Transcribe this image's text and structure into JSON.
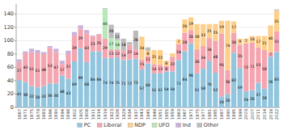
{
  "chart_data": {
    "type": "bar",
    "stacked": true,
    "grid": true,
    "legend": "bottom",
    "data_labels": true,
    "categories": [
      "1867",
      "1871",
      "1875",
      "1879",
      "1883",
      "1886",
      "1890",
      "1894",
      "1898",
      "1902",
      "1905",
      "1908",
      "1911",
      "1914",
      "1919",
      "1923",
      "1926",
      "1929",
      "1934",
      "1937",
      "1943",
      "1945",
      "1948",
      "1951",
      "1955",
      "1959",
      "1963",
      "1967",
      "1971",
      "1975",
      "1977",
      "1981",
      "1985",
      "1987",
      "1990",
      "1995",
      "1999",
      "2003",
      "2007",
      "2011",
      "2014",
      "2018",
      "2022"
    ],
    "series": [
      {
        "name": "PC",
        "color": "#92c5de",
        "values": [
          41,
          38,
          32,
          30,
          32,
          36,
          36,
          48,
          43,
          69,
          89,
          68,
          84,
          84,
          74,
          74,
          75,
          71,
          72,
          73,
          57,
          66,
          51,
          51,
          54,
          54,
          71,
          84,
          96,
          51,
          58,
          70,
          52,
          16,
          20,
          82,
          59,
          24,
          26,
          37,
          28,
          76,
          83
        ],
        "value_labels": [
          "41",
          "38",
          "32",
          "30",
          "32",
          "36",
          "36",
          "48",
          "43",
          "69",
          "89",
          "68",
          "84",
          "84",
          "74",
          "74",
          "75",
          "71",
          "72",
          "73",
          "57",
          "66",
          "51",
          "51",
          "54",
          "54",
          "71",
          "84",
          "96",
          "51",
          "58",
          "70",
          "52",
          "16",
          "20",
          "82",
          "59",
          "24",
          "26",
          "37",
          "28",
          "76",
          "83"
        ]
      },
      {
        "name": "Liberal",
        "color": "#f4a5b0",
        "values": [
          27,
          43,
          51,
          51,
          48,
          53,
          47,
          17,
          37,
          39,
          29,
          43,
          23,
          25,
          29,
          13,
          12,
          14,
          22,
          14,
          15,
          11,
          14,
          13,
          8,
          22,
          24,
          28,
          20,
          36,
          34,
          34,
          48,
          95,
          36,
          30,
          35,
          72,
          71,
          53,
          58,
          7,
          31
        ],
        "value_labels": [
          "27",
          "43",
          "51",
          "51",
          "48",
          "53",
          "47",
          "17",
          "37",
          "39",
          "29",
          "43",
          "23",
          "25",
          "29",
          "13",
          "12",
          "14",
          "22",
          "14",
          "15",
          "11",
          "14",
          "13",
          "8",
          "22",
          "24",
          "28",
          "20",
          "36",
          "34",
          "34",
          "48",
          "95",
          "36",
          "30",
          "35",
          "72",
          "71",
          "53",
          "58",
          "7",
          "31"
        ]
      },
      {
        "name": "NDP",
        "color": "#fdcf8a",
        "values": [
          0,
          0,
          0,
          0,
          0,
          0,
          0,
          0,
          0,
          0,
          0,
          0,
          0,
          0,
          0,
          0,
          0,
          0,
          0,
          0,
          34,
          8,
          21,
          22,
          8,
          5,
          7,
          20,
          19,
          38,
          33,
          21,
          25,
          19,
          74,
          17,
          9,
          7,
          10,
          17,
          21,
          40,
          31
        ],
        "value_labels": [
          null,
          null,
          null,
          null,
          null,
          null,
          null,
          null,
          null,
          null,
          null,
          null,
          null,
          null,
          null,
          null,
          null,
          null,
          null,
          null,
          "34",
          "8",
          "21",
          "22",
          "8",
          null,
          "7",
          "20",
          "19",
          "38",
          "33",
          "21",
          "25",
          "19",
          "74",
          "17",
          "9",
          "7",
          "10",
          "17",
          "21",
          "40",
          "31"
        ]
      },
      {
        "name": "UFO",
        "color": "#b8e8b8",
        "values": [
          0,
          0,
          0,
          0,
          0,
          0,
          0,
          0,
          0,
          0,
          0,
          0,
          0,
          0,
          45,
          17,
          14,
          0,
          0,
          0,
          0,
          0,
          0,
          0,
          0,
          0,
          0,
          0,
          0,
          0,
          0,
          0,
          0,
          0,
          0,
          0,
          0,
          0,
          0,
          0,
          0,
          0,
          0
        ],
        "value_labels": [
          null,
          null,
          null,
          null,
          null,
          null,
          null,
          null,
          null,
          null,
          null,
          null,
          null,
          null,
          "45",
          "17",
          "14",
          null,
          null,
          null,
          null,
          null,
          null,
          null,
          null,
          null,
          null,
          null,
          null,
          null,
          null,
          null,
          null,
          null,
          null,
          null,
          null,
          null,
          null,
          null,
          null,
          null,
          null
        ]
      },
      {
        "name": "Ind",
        "color": "#c9b0d8",
        "values": [
          4,
          3,
          5,
          5,
          3,
          3,
          5,
          5,
          5,
          5,
          5,
          5,
          1,
          1,
          1,
          0,
          0,
          0,
          0,
          0,
          0,
          0,
          0,
          0,
          0,
          0,
          0,
          0,
          0,
          0,
          0,
          0,
          0,
          0,
          0,
          0,
          0,
          0,
          0,
          0,
          0,
          0,
          1
        ]
      },
      {
        "name": "Other",
        "color": "#bbbbbb",
        "values": [
          0,
          0,
          0,
          0,
          0,
          0,
          0,
          0,
          0,
          0,
          0,
          0,
          0,
          0,
          0,
          20,
          11,
          18,
          4,
          28,
          0,
          5,
          0,
          0,
          0,
          0,
          0,
          0,
          0,
          0,
          0,
          0,
          0,
          0,
          0,
          0,
          0,
          0,
          0,
          0,
          0,
          0,
          1
        ],
        "value_labels": [
          null,
          null,
          null,
          null,
          null,
          null,
          null,
          null,
          null,
          null,
          null,
          null,
          null,
          null,
          null,
          "20",
          "11",
          "18",
          null,
          "28",
          null,
          null,
          null,
          null,
          null,
          null,
          null,
          null,
          null,
          null,
          null,
          null,
          null,
          null,
          null,
          null,
          null,
          null,
          null,
          null,
          null,
          null,
          null
        ]
      }
    ],
    "ylim": [
      0,
      155
    ],
    "yticks": [
      0,
      20,
      40,
      60,
      80,
      100,
      120,
      140
    ]
  }
}
